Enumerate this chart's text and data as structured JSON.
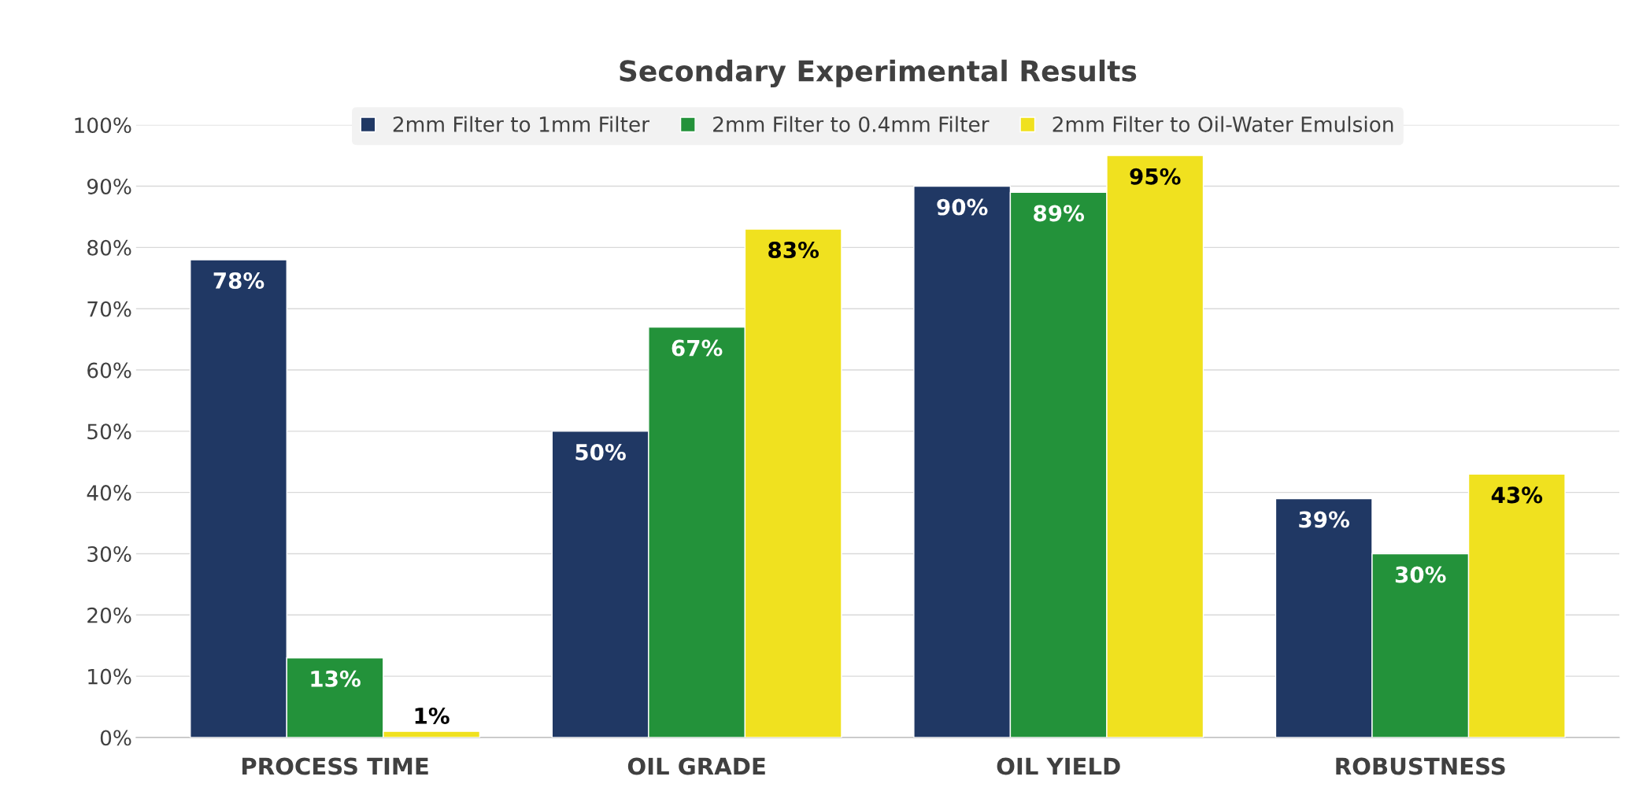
{
  "chart_data": {
    "type": "bar",
    "title": "Secondary Experimental Results",
    "categories": [
      "PROCESS TIME",
      "OIL GRADE",
      "OIL YIELD",
      "ROBUSTNESS"
    ],
    "series": [
      {
        "name": "2mm Filter to 1mm Filter",
        "color": "#203864",
        "values": [
          78,
          50,
          90,
          39
        ],
        "value_labels": [
          "78%",
          "50%",
          "90%",
          "39%"
        ]
      },
      {
        "name": "2mm Filter to 0.4mm Filter",
        "color": "#23923a",
        "values": [
          13,
          67,
          89,
          30
        ],
        "value_labels": [
          "13%",
          "67%",
          "89%",
          "30%"
        ]
      },
      {
        "name": "2mm Filter to Oil-Water Emulsion",
        "color": "#f0e11f",
        "values": [
          1,
          83,
          95,
          43
        ],
        "value_labels": [
          "1%",
          "83%",
          "95%",
          "43%"
        ]
      }
    ],
    "ylim": [
      0,
      100
    ],
    "yticks": [
      {
        "value": 0,
        "label": "0%"
      },
      {
        "value": 10,
        "label": "10%"
      },
      {
        "value": 20,
        "label": "20%"
      },
      {
        "value": 30,
        "label": "30%"
      },
      {
        "value": 40,
        "label": "40%"
      },
      {
        "value": 50,
        "label": "50%"
      },
      {
        "value": 60,
        "label": "60%"
      },
      {
        "value": 70,
        "label": "70%"
      },
      {
        "value": 80,
        "label": "80%"
      },
      {
        "value": 90,
        "label": "90%"
      },
      {
        "value": 100,
        "label": "100%"
      }
    ],
    "grid": "y",
    "legend": "top"
  }
}
